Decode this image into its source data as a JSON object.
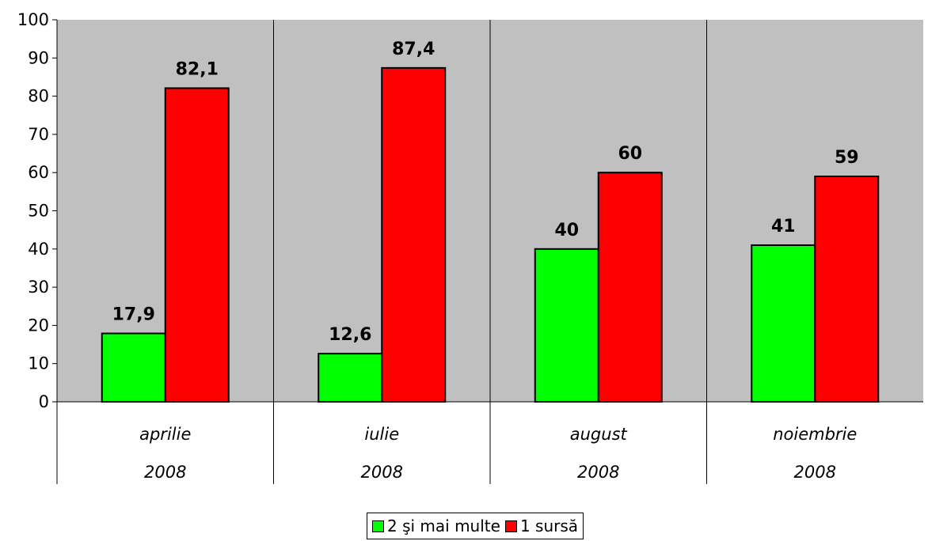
{
  "chart_data": {
    "type": "bar",
    "categories": [
      {
        "month": "aprilie",
        "year": "2008"
      },
      {
        "month": "iulie",
        "year": "2008"
      },
      {
        "month": "august",
        "year": "2008"
      },
      {
        "month": "noiembrie",
        "year": "2008"
      }
    ],
    "series": [
      {
        "name": "2 şi mai multe",
        "color": "#00ff00",
        "values": [
          17.9,
          12.6,
          40,
          41
        ],
        "labels": [
          "17,9",
          "12,6",
          "40",
          "41"
        ]
      },
      {
        "name": "1 sursă",
        "color": "#ff0000",
        "values": [
          82.1,
          87.4,
          60,
          59
        ],
        "labels": [
          "82,1",
          "87,4",
          "60",
          "59"
        ]
      }
    ],
    "ylim": [
      0,
      100
    ],
    "yticks": [
      "0",
      "10",
      "20",
      "30",
      "40",
      "50",
      "60",
      "70",
      "80",
      "90",
      "100"
    ],
    "plot_background": "#c0c0c0",
    "grid": false,
    "legend_position": "bottom"
  }
}
